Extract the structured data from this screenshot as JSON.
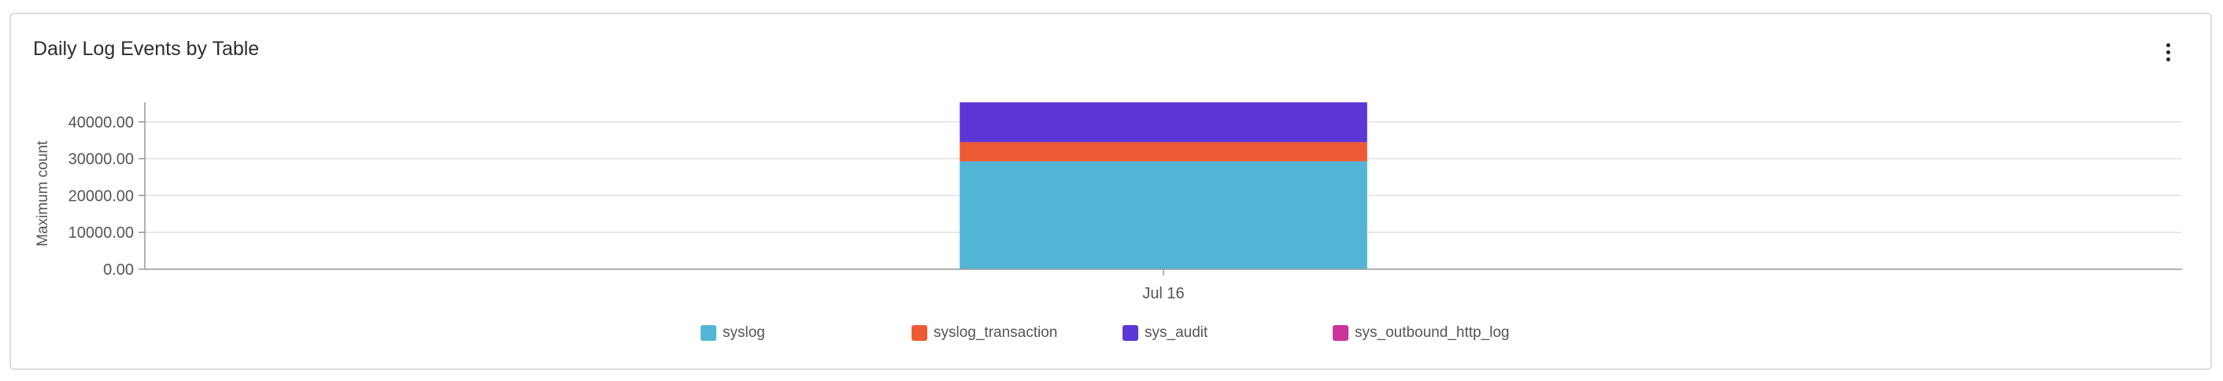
{
  "card": {
    "title": "Daily Log Events by Table"
  },
  "chart_data": {
    "type": "bar",
    "stacked": true,
    "categories": [
      "Jul 16"
    ],
    "series": [
      {
        "name": "syslog",
        "values": [
          29300
        ],
        "color": "#52b5d6"
      },
      {
        "name": "syslog_transaction",
        "values": [
          5200
        ],
        "color": "#ee5a35"
      },
      {
        "name": "sys_audit",
        "values": [
          10800
        ],
        "color": "#5c37d6"
      },
      {
        "name": "sys_outbound_http_log",
        "values": [
          0
        ],
        "color": "#c9359b"
      }
    ],
    "title": "",
    "xlabel": "",
    "ylabel": "Maximum count",
    "ylim": [
      0,
      45300
    ],
    "yticks": [
      0,
      10000,
      20000,
      30000,
      40000
    ],
    "ytick_labels": [
      "0.00",
      "10000.00",
      "20000.00",
      "30000.00",
      "40000.00"
    ],
    "grid": true,
    "legend_position": "bottom"
  }
}
